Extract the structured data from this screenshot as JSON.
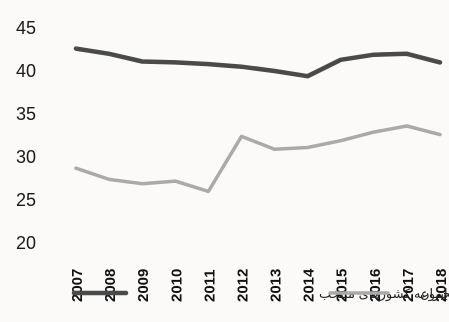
{
  "chart_data": {
    "type": "line",
    "x": [
      "2007",
      "2008",
      "2009",
      "2010",
      "2011",
      "2012",
      "2013",
      "2014",
      "2015",
      "2016",
      "2017",
      "2018"
    ],
    "series": [
      {
        "name": "مجموعه کشورهای منتخب",
        "color": "#4a4a4a",
        "values": [
          42.6,
          42.0,
          41.1,
          41.0,
          40.8,
          40.5,
          40.0,
          39.4,
          41.3,
          41.9,
          42.0,
          41.0
        ]
      },
      {
        "name": "ایران",
        "color": "#aaaaaa",
        "values": [
          28.7,
          27.4,
          26.9,
          27.2,
          26.0,
          32.4,
          30.9,
          31.1,
          31.9,
          32.9,
          33.6,
          32.6
        ]
      }
    ],
    "yticks": [
      "20",
      "25",
      "30",
      "35",
      "40",
      "45"
    ],
    "ylim": [
      20,
      45
    ],
    "xlabel": "",
    "ylabel": "",
    "title": "",
    "grid": false,
    "legend_position": "bottom"
  }
}
